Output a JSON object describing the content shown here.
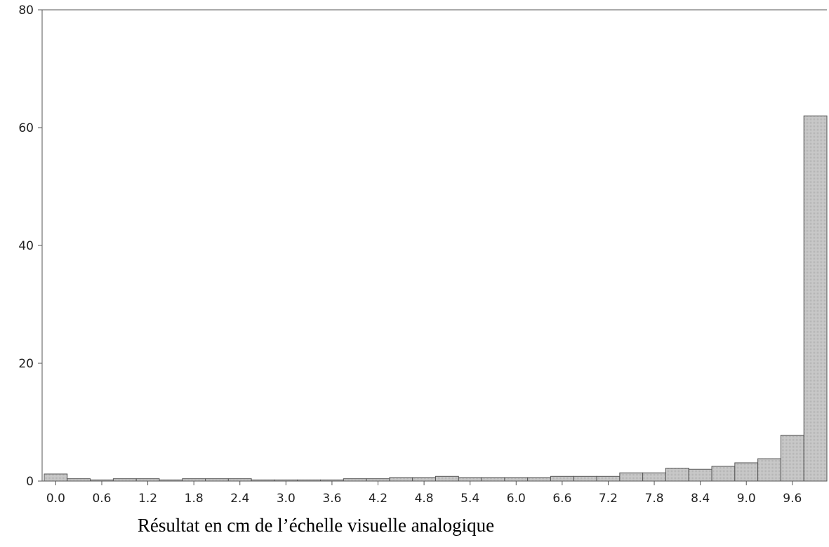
{
  "chart_data": {
    "type": "bar",
    "title": "",
    "xlabel": "Résultat en cm de l’échelle visuelle analogique",
    "ylabel": "",
    "ylim": [
      0,
      80
    ],
    "grid": false,
    "bin_width": 0.3,
    "bin_starts": [
      0.0,
      0.3,
      0.6,
      0.9,
      1.2,
      1.5,
      1.8,
      2.1,
      2.4,
      2.7,
      3.0,
      3.3,
      3.6,
      3.9,
      4.2,
      4.5,
      4.8,
      5.1,
      5.4,
      5.7,
      6.0,
      6.3,
      6.6,
      6.9,
      7.2,
      7.5,
      7.8,
      8.1,
      8.4,
      8.7,
      9.0,
      9.3,
      9.6,
      9.9
    ],
    "values": [
      1.2,
      0.4,
      0.2,
      0.4,
      0.4,
      0.2,
      0.4,
      0.4,
      0.4,
      0.2,
      0.2,
      0.2,
      0.2,
      0.4,
      0.4,
      0.6,
      0.6,
      0.8,
      0.6,
      0.6,
      0.6,
      0.6,
      0.8,
      0.8,
      0.8,
      1.4,
      1.4,
      2.2,
      2.0,
      2.5,
      3.1,
      3.8,
      7.8,
      62.0
    ],
    "x_tick_labels": [
      "0.0",
      "0.6",
      "1.2",
      "1.8",
      "2.4",
      "3.0",
      "3.6",
      "4.2",
      "4.8",
      "5.4",
      "6.0",
      "6.6",
      "7.2",
      "7.8",
      "8.4",
      "9.0",
      "9.6"
    ],
    "y_ticks": [
      0,
      20,
      40,
      60,
      80
    ],
    "colors": {
      "bar_fill": "#c8c8c8",
      "bar_stroke": "#555555",
      "axis": "#555555"
    }
  }
}
